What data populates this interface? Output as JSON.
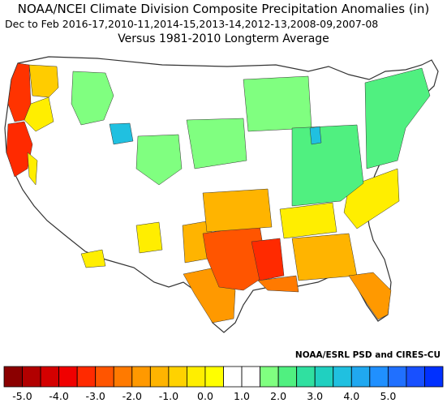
{
  "title": {
    "line1": "NOAA/NCEI Climate Division Composite Precipitation Anomalies (in)",
    "line2": "Dec to Feb  2016-17,2010-11,2014-15,2013-14,2012-13,2008-09,2007-08",
    "line3": "Versus 1981-2010 Longterm Average"
  },
  "credit": "NOAA/ESRL PSD and CIRES-CU",
  "legend": {
    "colors": [
      "#8b0000",
      "#b20000",
      "#d40000",
      "#f00000",
      "#ff2a00",
      "#ff5500",
      "#ff7a00",
      "#ff9900",
      "#ffb400",
      "#ffd200",
      "#ffee00",
      "#ffff00",
      "#ffffff",
      "#ffffff",
      "#80ff80",
      "#50f080",
      "#30e0a0",
      "#20d0c0",
      "#20c0e0",
      "#20a8f0",
      "#2090ff",
      "#2070ff",
      "#1850ff",
      "#0030ff"
    ],
    "ticks": [
      "-5.0",
      "-4.0",
      "-3.0",
      "-2.0",
      "-1.0",
      "0.0",
      "1.0",
      "2.0",
      "3.0",
      "4.0",
      "5.0"
    ]
  },
  "regions": [
    {
      "name": "Pacific Northwest coast",
      "color": "#ff3300"
    },
    {
      "name": "Northern California coast",
      "color": "#ff2a00"
    },
    {
      "name": "Interior Northwest",
      "color": "#ffcc00"
    },
    {
      "name": "Idaho / Montana",
      "color": "#80ff80"
    },
    {
      "name": "Northern Utah",
      "color": "#20c0e0"
    },
    {
      "name": "Southern California",
      "color": "#ffee00"
    },
    {
      "name": "Arizona",
      "color": "#ffee00"
    },
    {
      "name": "New Mexico",
      "color": "#ffb400"
    },
    {
      "name": "West Texas",
      "color": "#ff9900"
    },
    {
      "name": "Central Texas / Oklahoma",
      "color": "#ff5500"
    },
    {
      "name": "Lower Mississippi Valley",
      "color": "#ff2a00"
    },
    {
      "name": "Ozarks / Kansas",
      "color": "#ffb400"
    },
    {
      "name": "Tennessee Valley",
      "color": "#ffee00"
    },
    {
      "name": "Southeast",
      "color": "#ffb400"
    },
    {
      "name": "Florida",
      "color": "#ff9900"
    },
    {
      "name": "Mid-Atlantic",
      "color": "#ffee00"
    },
    {
      "name": "Great Lakes / Ohio Valley",
      "color": "#80ff80"
    },
    {
      "name": "Northeast",
      "color": "#50f080"
    },
    {
      "name": "Upper Midwest",
      "color": "#80ff80"
    },
    {
      "name": "Central Plains",
      "color": "#80ff80"
    }
  ]
}
